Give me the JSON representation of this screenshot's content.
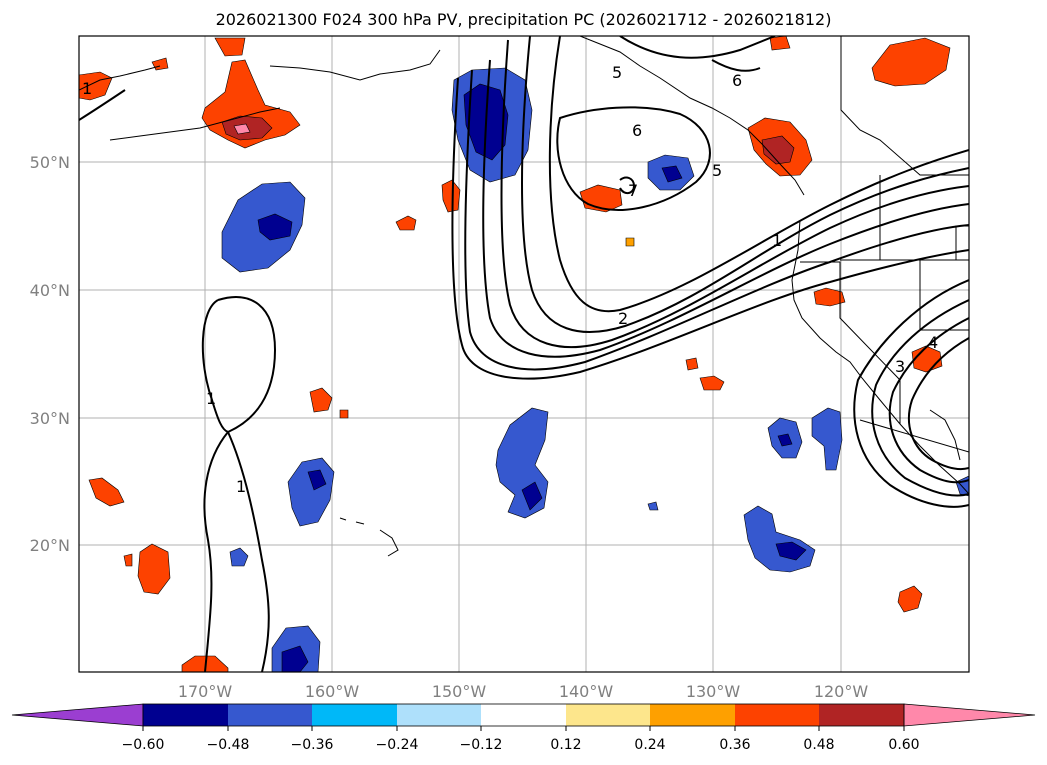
{
  "map": {
    "title": "2026021300 F024 300 hPa PV, precipitation PC (2026021712 - 2026021812)",
    "lat_labels": [
      "50°N",
      "40°N",
      "30°N",
      "20°N"
    ],
    "lon_labels": [
      "170°W",
      "160°W",
      "150°W",
      "140°W",
      "130°W",
      "120°W"
    ],
    "contour_labels": [
      "5",
      "6",
      "6",
      "5",
      "1",
      "1",
      "2",
      "1",
      "1",
      "3",
      "4",
      "7"
    ]
  },
  "colorbar": {
    "tick_labels": [
      "−0.60",
      "−0.48",
      "−0.36",
      "−0.24",
      "−0.12",
      "0.12",
      "0.24",
      "0.36",
      "0.48",
      "0.60"
    ],
    "colors": [
      "#9b3ed1",
      "#000090",
      "#3658cf",
      "#00b8f8",
      "#aee0fb",
      "#ffffff",
      "#fde68c",
      "#fea000",
      "#fd4200",
      "#b02424",
      "#ff88aa"
    ]
  }
}
